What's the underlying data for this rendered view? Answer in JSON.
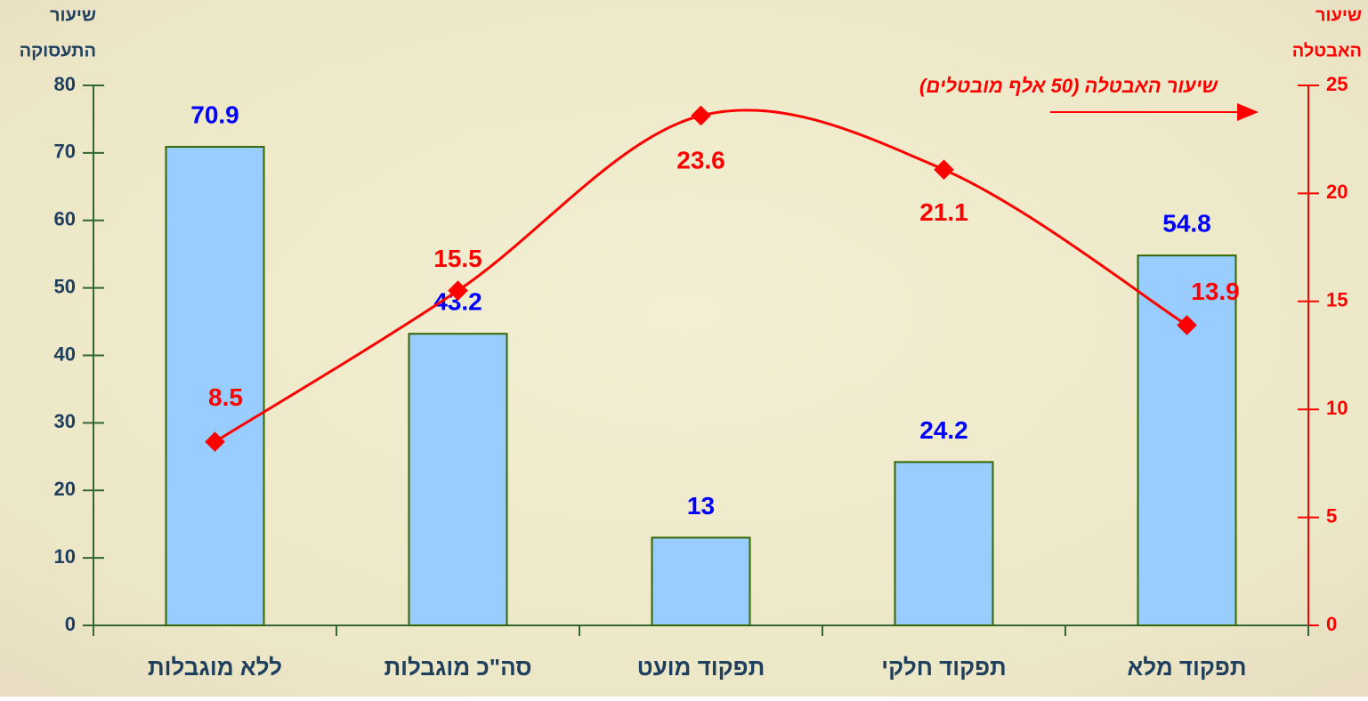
{
  "chart_data": {
    "type": "bar-line",
    "ylabel": [
      "שיעור",
      "התעסוקה"
    ],
    "y2label": [
      "שיעור",
      "האבטלה"
    ],
    "categories": [
      "ללא מוגבלות",
      "סה\"כ מוגבלות",
      "תפקוד מועט",
      "תפקוד חלקי",
      "תפקוד מלא"
    ],
    "series": [
      {
        "type": "bar",
        "color": "#99ccff",
        "values": [
          70.9,
          43.2,
          13,
          24.2,
          54.8
        ]
      },
      {
        "type": "line",
        "name": "שיעור האבטלה (50 אלף מובטלים)",
        "axis": "y2",
        "color": "#ff0000",
        "values": [
          8.5,
          15.5,
          23.6,
          21.1,
          13.9
        ]
      }
    ],
    "ylim": [
      0,
      80
    ],
    "yticks": [
      0,
      10,
      20,
      30,
      40,
      50,
      60,
      70,
      80
    ],
    "y2lim": [
      0,
      25
    ],
    "y2ticks": [
      0,
      5,
      10,
      15,
      20,
      25
    ]
  }
}
